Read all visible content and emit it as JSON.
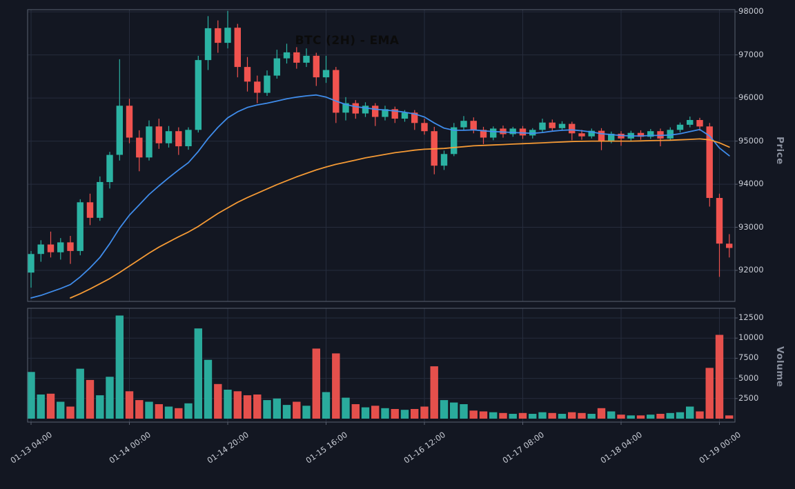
{
  "colors": {
    "background": "#131722",
    "grid": "#262c3d",
    "spine": "#5a6170",
    "tick_text": "#c9cdd6",
    "axis_title_text": "#8b919f",
    "title_text": "#0b0b0b",
    "up": "#2bb3a3",
    "down": "#f0534f",
    "ema_fast": "#4292f4",
    "ema_slow": "#ffa036"
  },
  "chart_data": {
    "type": "candlestick",
    "title": "BTC (2H) - EMA",
    "symbol": "BTC",
    "interval": "2H",
    "ylabel_price": "Price",
    "ylabel_volume": "Volume",
    "grid": true,
    "price_ticks": [
      92000,
      93000,
      94000,
      95000,
      96000,
      97000,
      98000
    ],
    "volume_ticks": [
      2500,
      5000,
      7500,
      10000,
      12500
    ],
    "price_ylim": [
      91280,
      98050
    ],
    "volume_ylim": [
      0,
      13700
    ],
    "x_tick_indices": [
      0,
      10,
      20,
      30,
      40,
      50,
      60,
      70
    ],
    "x_tick_labels": [
      "01-13 04:00",
      "01-14 00:00",
      "01-14 20:00",
      "01-15 16:00",
      "01-16 12:00",
      "01-17 08:00",
      "01-18 04:00",
      "01-19 00:00"
    ],
    "candles_ohlcv": [
      [
        91950,
        92450,
        91600,
        92380,
        5800
      ],
      [
        92380,
        92700,
        92200,
        92600,
        3000
      ],
      [
        92600,
        92900,
        92300,
        92420,
        3100
      ],
      [
        92420,
        92750,
        92250,
        92650,
        2100
      ],
      [
        92650,
        92800,
        92150,
        92450,
        1500
      ],
      [
        92450,
        93650,
        92350,
        93580,
        6200
      ],
      [
        93580,
        93780,
        93050,
        93220,
        4800
      ],
      [
        93220,
        94180,
        93150,
        94050,
        2900
      ],
      [
        94050,
        94750,
        93900,
        94680,
        5200
      ],
      [
        94680,
        96900,
        94550,
        95820,
        12800
      ],
      [
        95820,
        95980,
        94950,
        95080,
        3400
      ],
      [
        95080,
        95250,
        94300,
        94620,
        2300
      ],
      [
        94620,
        95480,
        94550,
        95340,
        2100
      ],
      [
        95340,
        95520,
        94820,
        94950,
        1800
      ],
      [
        94950,
        95350,
        94850,
        95230,
        1500
      ],
      [
        95230,
        95320,
        94680,
        94880,
        1300
      ],
      [
        94880,
        95320,
        94800,
        95260,
        1900
      ],
      [
        95260,
        96980,
        95200,
        96880,
        11200
      ],
      [
        96880,
        97900,
        96650,
        97620,
        7300
      ],
      [
        97620,
        97800,
        97050,
        97280,
        4300
      ],
      [
        97280,
        98020,
        97150,
        97630,
        3600
      ],
      [
        97630,
        97720,
        96480,
        96720,
        3400
      ],
      [
        96720,
        96950,
        96150,
        96380,
        2900
      ],
      [
        96380,
        96520,
        95880,
        96120,
        3000
      ],
      [
        96120,
        96640,
        96050,
        96520,
        2300
      ],
      [
        96520,
        97120,
        96450,
        96920,
        2500
      ],
      [
        96920,
        97260,
        96800,
        97060,
        1700
      ],
      [
        97060,
        97180,
        96680,
        96820,
        2100
      ],
      [
        96820,
        97150,
        96720,
        96980,
        1600
      ],
      [
        96980,
        97050,
        96280,
        96480,
        8700
      ],
      [
        96480,
        96980,
        96350,
        96650,
        3300
      ],
      [
        96650,
        96720,
        95420,
        95660,
        8100
      ],
      [
        95660,
        96020,
        95480,
        95880,
        2600
      ],
      [
        95880,
        95950,
        95520,
        95640,
        1800
      ],
      [
        95640,
        95900,
        95560,
        95820,
        1400
      ],
      [
        95820,
        95880,
        95350,
        95560,
        1600
      ],
      [
        95560,
        95820,
        95480,
        95740,
        1300
      ],
      [
        95740,
        95800,
        95420,
        95520,
        1200
      ],
      [
        95520,
        95720,
        95450,
        95660,
        1100
      ],
      [
        95660,
        95720,
        95260,
        95420,
        1200
      ],
      [
        95420,
        95520,
        95150,
        95230,
        1500
      ],
      [
        95230,
        95330,
        94230,
        94430,
        6500
      ],
      [
        94430,
        94780,
        94330,
        94700,
        2300
      ],
      [
        94700,
        95420,
        94650,
        95320,
        2000
      ],
      [
        95320,
        95580,
        95250,
        95470,
        1800
      ],
      [
        95470,
        95550,
        95180,
        95260,
        1000
      ],
      [
        95260,
        95330,
        94930,
        95080,
        900
      ],
      [
        95080,
        95340,
        95020,
        95290,
        800
      ],
      [
        95290,
        95360,
        95080,
        95160,
        700
      ],
      [
        95160,
        95330,
        95100,
        95290,
        600
      ],
      [
        95290,
        95350,
        95050,
        95130,
        700
      ],
      [
        95130,
        95300,
        95060,
        95260,
        600
      ],
      [
        95260,
        95520,
        95200,
        95430,
        800
      ],
      [
        95430,
        95500,
        95230,
        95300,
        700
      ],
      [
        95300,
        95460,
        95240,
        95400,
        600
      ],
      [
        95400,
        95450,
        95020,
        95180,
        800
      ],
      [
        95180,
        95260,
        95030,
        95110,
        700
      ],
      [
        95110,
        95290,
        95060,
        95240,
        600
      ],
      [
        95240,
        95300,
        94790,
        95010,
        1300
      ],
      [
        95010,
        95220,
        94950,
        95170,
        900
      ],
      [
        95170,
        95230,
        94890,
        95060,
        500
      ],
      [
        95060,
        95240,
        95000,
        95190,
        400
      ],
      [
        95190,
        95250,
        95030,
        95100,
        400
      ],
      [
        95100,
        95280,
        95050,
        95230,
        500
      ],
      [
        95230,
        95290,
        94880,
        95060,
        600
      ],
      [
        95060,
        95320,
        95010,
        95260,
        700
      ],
      [
        95260,
        95430,
        95200,
        95380,
        800
      ],
      [
        95380,
        95570,
        95320,
        95490,
        1500
      ],
      [
        95490,
        95540,
        95240,
        95340,
        900
      ],
      [
        95340,
        95420,
        93480,
        93680,
        6300
      ],
      [
        93680,
        93780,
        91850,
        92620,
        10400
      ],
      [
        92620,
        92840,
        92300,
        92520,
        400
      ]
    ],
    "ema_series": [
      {
        "name": "EMA fast",
        "color_key": "ema_fast",
        "values": [
          91360,
          91420,
          91500,
          91580,
          91670,
          91850,
          92060,
          92300,
          92620,
          92980,
          93280,
          93520,
          93760,
          93960,
          94150,
          94330,
          94500,
          94760,
          95060,
          95320,
          95540,
          95680,
          95780,
          95840,
          95880,
          95930,
          95980,
          96020,
          96050,
          96070,
          96020,
          95930,
          95850,
          95800,
          95770,
          95740,
          95720,
          95700,
          95670,
          95630,
          95560,
          95420,
          95300,
          95250,
          95250,
          95260,
          95240,
          95220,
          95210,
          95200,
          95190,
          95180,
          95200,
          95230,
          95250,
          95260,
          95240,
          95210,
          95170,
          95150,
          95130,
          95120,
          95120,
          95130,
          95130,
          95140,
          95170,
          95220,
          95270,
          95120,
          94840,
          94660
        ]
      },
      {
        "name": "EMA slow",
        "color_key": "ema_slow",
        "values": [
          null,
          null,
          null,
          null,
          91360,
          91460,
          91570,
          91690,
          91810,
          91950,
          92100,
          92250,
          92400,
          92540,
          92660,
          92780,
          92890,
          93020,
          93170,
          93320,
          93450,
          93580,
          93690,
          93790,
          93890,
          93990,
          94080,
          94170,
          94250,
          94330,
          94400,
          94460,
          94510,
          94560,
          94610,
          94650,
          94690,
          94730,
          94760,
          94790,
          94810,
          94820,
          94830,
          94850,
          94870,
          94890,
          94900,
          94910,
          94920,
          94930,
          94940,
          94950,
          94960,
          94970,
          94980,
          94990,
          94995,
          95000,
          95000,
          95000,
          95000,
          95000,
          95005,
          95010,
          95015,
          95020,
          95030,
          95040,
          95050,
          95030,
          94960,
          94860
        ]
      }
    ]
  }
}
